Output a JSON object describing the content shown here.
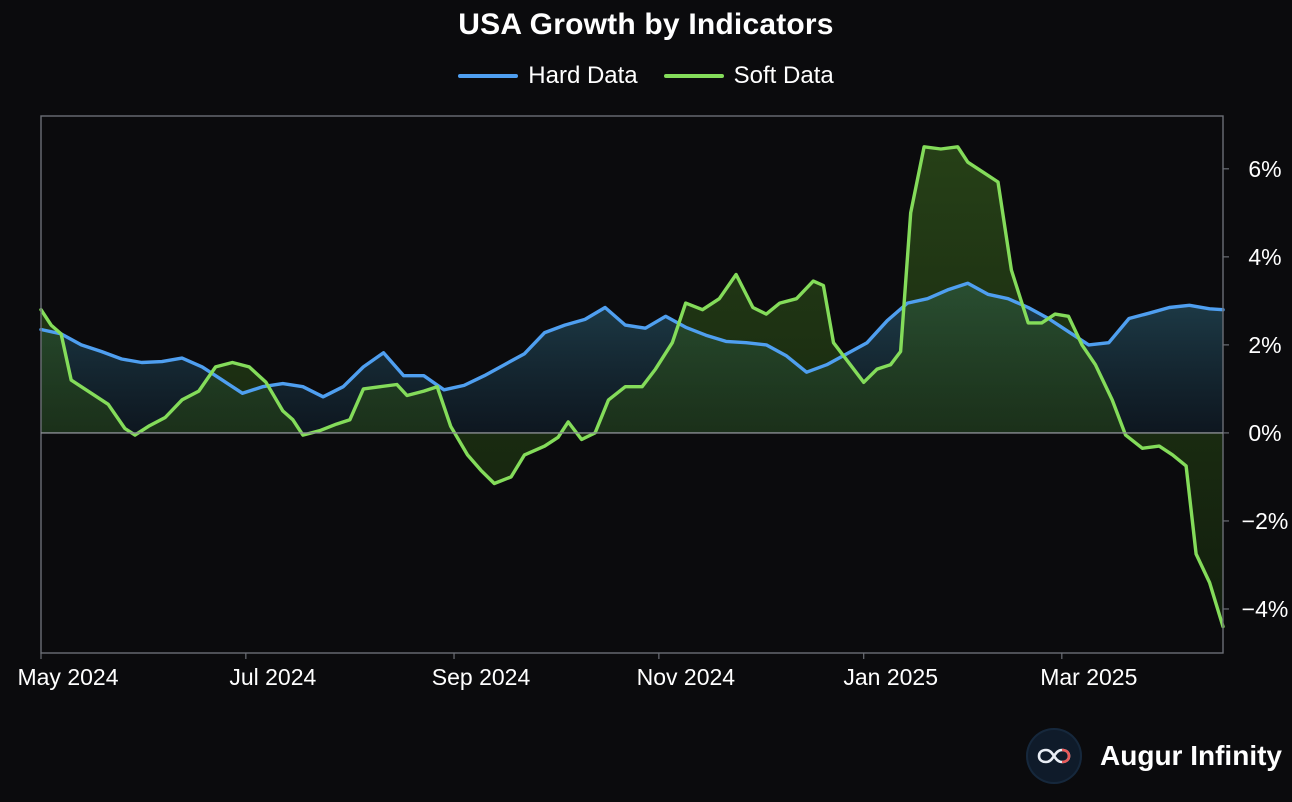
{
  "title": "USA Growth by Indicators",
  "brand": {
    "name": "Augur Infinity",
    "icon": "infinity-logo-icon"
  },
  "colors": {
    "background": "#0b0b0d",
    "hard": "#4f9ff0",
    "soft": "#84dc5a",
    "axis": "#6b6e75"
  },
  "chart_data": {
    "type": "line",
    "title": "USA Growth by Indicators",
    "xlabel": "",
    "ylabel": "",
    "y_axis_side": "right",
    "ylim": [
      -5,
      7.2
    ],
    "yticks": [
      6,
      4,
      2,
      0,
      -2,
      -4
    ],
    "ytick_labels": [
      "6%",
      "4%",
      "2%",
      "0%",
      "−2%",
      "−4%"
    ],
    "xticks": [
      "2024-05-01",
      "2024-07-01",
      "2024-09-01",
      "2024-11-01",
      "2025-01-01",
      "2025-03-01"
    ],
    "xtick_labels": [
      "May 2024",
      "Jul 2024",
      "Sep 2024",
      "Nov 2024",
      "Jan 2025",
      "Mar 2025"
    ],
    "xlim": [
      "2024-05-01",
      "2025-04-18"
    ],
    "grid": false,
    "legend": "top-center",
    "zero_line": true,
    "series": [
      {
        "name": "Hard Data",
        "color": "#4f9ff0",
        "points": [
          [
            "2024-05-01",
            2.35
          ],
          [
            "2024-05-07",
            2.25
          ],
          [
            "2024-05-13",
            2.0
          ],
          [
            "2024-05-19",
            1.85
          ],
          [
            "2024-05-25",
            1.68
          ],
          [
            "2024-05-31",
            1.6
          ],
          [
            "2024-06-06",
            1.62
          ],
          [
            "2024-06-12",
            1.7
          ],
          [
            "2024-06-18",
            1.5
          ],
          [
            "2024-06-24",
            1.2
          ],
          [
            "2024-06-30",
            0.9
          ],
          [
            "2024-07-06",
            1.05
          ],
          [
            "2024-07-12",
            1.12
          ],
          [
            "2024-07-18",
            1.05
          ],
          [
            "2024-07-24",
            0.82
          ],
          [
            "2024-07-30",
            1.05
          ],
          [
            "2024-08-05",
            1.5
          ],
          [
            "2024-08-11",
            1.82
          ],
          [
            "2024-08-17",
            1.3
          ],
          [
            "2024-08-23",
            1.3
          ],
          [
            "2024-08-29",
            0.98
          ],
          [
            "2024-09-04",
            1.08
          ],
          [
            "2024-09-10",
            1.3
          ],
          [
            "2024-09-16",
            1.55
          ],
          [
            "2024-09-22",
            1.8
          ],
          [
            "2024-09-28",
            2.28
          ],
          [
            "2024-10-04",
            2.45
          ],
          [
            "2024-10-10",
            2.58
          ],
          [
            "2024-10-16",
            2.85
          ],
          [
            "2024-10-22",
            2.45
          ],
          [
            "2024-10-28",
            2.38
          ],
          [
            "2024-11-03",
            2.65
          ],
          [
            "2024-11-09",
            2.4
          ],
          [
            "2024-11-15",
            2.22
          ],
          [
            "2024-11-21",
            2.08
          ],
          [
            "2024-11-27",
            2.05
          ],
          [
            "2024-12-03",
            2.0
          ],
          [
            "2024-12-09",
            1.75
          ],
          [
            "2024-12-15",
            1.38
          ],
          [
            "2024-12-21",
            1.55
          ],
          [
            "2024-12-27",
            1.8
          ],
          [
            "2025-01-02",
            2.05
          ],
          [
            "2025-01-08",
            2.55
          ],
          [
            "2025-01-14",
            2.95
          ],
          [
            "2025-01-20",
            3.05
          ],
          [
            "2025-01-26",
            3.25
          ],
          [
            "2025-02-01",
            3.4
          ],
          [
            "2025-02-07",
            3.15
          ],
          [
            "2025-02-13",
            3.05
          ],
          [
            "2025-02-19",
            2.85
          ],
          [
            "2025-02-25",
            2.6
          ],
          [
            "2025-03-03",
            2.3
          ],
          [
            "2025-03-09",
            2.0
          ],
          [
            "2025-03-15",
            2.05
          ],
          [
            "2025-03-21",
            2.6
          ],
          [
            "2025-03-27",
            2.72
          ],
          [
            "2025-04-02",
            2.85
          ],
          [
            "2025-04-08",
            2.9
          ],
          [
            "2025-04-14",
            2.82
          ],
          [
            "2025-04-18",
            2.8
          ]
        ]
      },
      {
        "name": "Soft Data",
        "color": "#84dc5a",
        "points": [
          [
            "2024-05-01",
            2.8
          ],
          [
            "2024-05-04",
            2.45
          ],
          [
            "2024-05-07",
            2.25
          ],
          [
            "2024-05-10",
            1.2
          ],
          [
            "2024-05-16",
            0.9
          ],
          [
            "2024-05-21",
            0.65
          ],
          [
            "2024-05-26",
            0.1
          ],
          [
            "2024-05-29",
            -0.05
          ],
          [
            "2024-06-02",
            0.15
          ],
          [
            "2024-06-07",
            0.35
          ],
          [
            "2024-06-12",
            0.75
          ],
          [
            "2024-06-17",
            0.95
          ],
          [
            "2024-06-22",
            1.5
          ],
          [
            "2024-06-27",
            1.6
          ],
          [
            "2024-07-02",
            1.5
          ],
          [
            "2024-07-07",
            1.15
          ],
          [
            "2024-07-12",
            0.5
          ],
          [
            "2024-07-15",
            0.3
          ],
          [
            "2024-07-18",
            -0.05
          ],
          [
            "2024-07-23",
            0.05
          ],
          [
            "2024-07-28",
            0.2
          ],
          [
            "2024-08-01",
            0.3
          ],
          [
            "2024-08-05",
            1.0
          ],
          [
            "2024-08-10",
            1.05
          ],
          [
            "2024-08-15",
            1.1
          ],
          [
            "2024-08-18",
            0.85
          ],
          [
            "2024-08-23",
            0.95
          ],
          [
            "2024-08-27",
            1.05
          ],
          [
            "2024-08-31",
            0.15
          ],
          [
            "2024-09-05",
            -0.5
          ],
          [
            "2024-09-09",
            -0.85
          ],
          [
            "2024-09-13",
            -1.15
          ],
          [
            "2024-09-18",
            -1.0
          ],
          [
            "2024-09-22",
            -0.5
          ],
          [
            "2024-09-28",
            -0.3
          ],
          [
            "2024-10-02",
            -0.1
          ],
          [
            "2024-10-05",
            0.25
          ],
          [
            "2024-10-09",
            -0.15
          ],
          [
            "2024-10-13",
            0.0
          ],
          [
            "2024-10-17",
            0.75
          ],
          [
            "2024-10-22",
            1.05
          ],
          [
            "2024-10-27",
            1.05
          ],
          [
            "2024-10-31",
            1.45
          ],
          [
            "2024-11-05",
            2.05
          ],
          [
            "2024-11-09",
            2.95
          ],
          [
            "2024-11-14",
            2.8
          ],
          [
            "2024-11-19",
            3.05
          ],
          [
            "2024-11-24",
            3.6
          ],
          [
            "2024-11-29",
            2.85
          ],
          [
            "2024-12-03",
            2.7
          ],
          [
            "2024-12-07",
            2.95
          ],
          [
            "2024-12-12",
            3.05
          ],
          [
            "2024-12-17",
            3.45
          ],
          [
            "2024-12-20",
            3.35
          ],
          [
            "2024-12-23",
            2.05
          ],
          [
            "2024-12-28",
            1.55
          ],
          [
            "2025-01-01",
            1.15
          ],
          [
            "2025-01-05",
            1.45
          ],
          [
            "2025-01-09",
            1.55
          ],
          [
            "2025-01-12",
            1.85
          ],
          [
            "2025-01-15",
            5.0
          ],
          [
            "2025-01-19",
            6.5
          ],
          [
            "2025-01-24",
            6.45
          ],
          [
            "2025-01-29",
            6.5
          ],
          [
            "2025-02-01",
            6.15
          ],
          [
            "2025-02-06",
            5.9
          ],
          [
            "2025-02-10",
            5.7
          ],
          [
            "2025-02-14",
            3.7
          ],
          [
            "2025-02-19",
            2.5
          ],
          [
            "2025-02-23",
            2.5
          ],
          [
            "2025-02-27",
            2.7
          ],
          [
            "2025-03-03",
            2.65
          ],
          [
            "2025-03-07",
            2.0
          ],
          [
            "2025-03-11",
            1.55
          ],
          [
            "2025-03-16",
            0.75
          ],
          [
            "2025-03-20",
            -0.05
          ],
          [
            "2025-03-25",
            -0.35
          ],
          [
            "2025-03-30",
            -0.3
          ],
          [
            "2025-04-03",
            -0.5
          ],
          [
            "2025-04-07",
            -0.75
          ],
          [
            "2025-04-10",
            -2.75
          ],
          [
            "2025-04-14",
            -3.4
          ],
          [
            "2025-04-18",
            -4.4
          ]
        ]
      }
    ]
  }
}
